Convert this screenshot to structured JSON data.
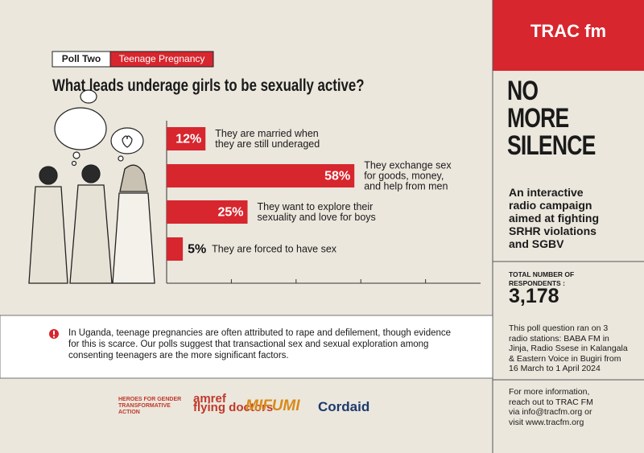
{
  "header": {
    "poll": "Poll Two",
    "topic": "Teenage Pregnancy"
  },
  "chart_data": {
    "type": "bar",
    "orientation": "horizontal",
    "title": "What leads underage girls to be sexually active?",
    "categories": [
      "They are married when\nthey are still underaged",
      "They exchange sex\nfor goods, money,\nand help from men",
      "They want to explore their\nsexuality and love for boys",
      "They are forced to have sex"
    ],
    "values": [
      12,
      58,
      25,
      5
    ],
    "value_labels": [
      "12%",
      "58%",
      "25%",
      "5%"
    ],
    "color": "#d7262e",
    "xlim": [
      0,
      97
    ],
    "xticks": [
      20,
      40,
      60,
      80
    ]
  },
  "note": "In Uganda, teenage pregnancies are often attributed to rape and defilement, though evidence\nfor this is scarce. Our polls suggest that transactional sex and sexual exploration among\nconsenting teenagers are the more significant factors.",
  "logos": [
    "HEROES FOR GENDER\nTRANSFORMATIVE\nACTION",
    "amref\nflying doctors",
    "MIFUMI",
    "Cordaid"
  ],
  "sidebar": {
    "brand": "TRAC fm",
    "campaign": "NO\nMORE\nSILENCE",
    "description": "An interactive\nradio campaign\naimed at fighting\nSRHR violations\nand SGBV",
    "respondents_label": "TOTAL NUMBER OF\nRESPONDENTS :",
    "respondents": "3,178",
    "stations": "This poll question ran on 3\nradio stations: BABA FM in\nJinja, Radio Ssese in Kalangala\n& Eastern Voice in Bugiri from\n16 March to 1 April 2024",
    "contact": "For more information,\nreach out to TRAC FM\nvia info@tracfm.org or\nvisit www.tracfm.org"
  }
}
